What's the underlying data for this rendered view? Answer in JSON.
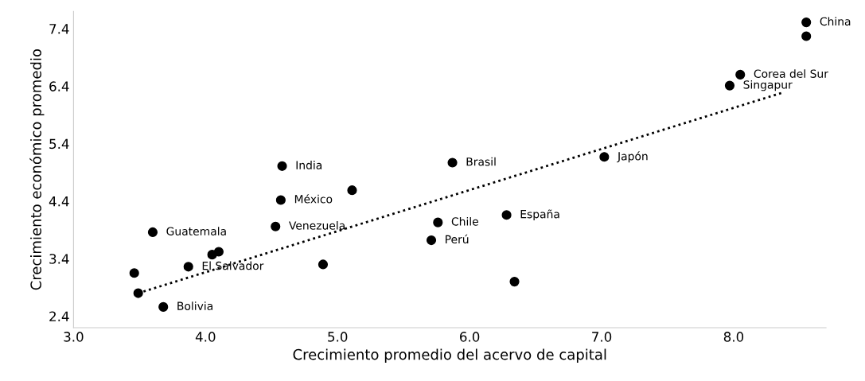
{
  "chart_data": {
    "type": "scatter",
    "xlabel": "Crecimiento promedio del acervo de capital",
    "ylabel": "Crecimiento económico promedio",
    "xlim": [
      3.0,
      8.7
    ],
    "xticks": [
      {
        "value": 3.0,
        "label": "3.0"
      },
      {
        "value": 4.0,
        "label": "4.0"
      },
      {
        "value": 5.0,
        "label": "5.0"
      },
      {
        "value": 6.0,
        "label": "6.0"
      },
      {
        "value": 7.0,
        "label": "7.0"
      },
      {
        "value": 8.0,
        "label": "8.0"
      }
    ],
    "ylim": [
      2.2,
      7.7
    ],
    "yticks": [
      2.4,
      3.4,
      4.4,
      5.4,
      6.4,
      7.4
    ],
    "grid": false,
    "marker": "circle",
    "series": [
      {
        "color": "#000000",
        "x": [
          8.55,
          8.05,
          7.97,
          7.02,
          5.87,
          4.58,
          4.57,
          6.28,
          5.76,
          4.53,
          3.6,
          4.05,
          3.87,
          3.68
        ],
        "values": [
          7.51,
          6.6,
          6.41,
          5.17,
          5.07,
          5.01,
          4.42,
          4.16,
          4.03,
          3.96,
          3.86,
          3.47,
          3.26,
          2.56
        ]
      },
      {
        "color": "#000000",
        "x": [
          8.55,
          5.11,
          5.71,
          4.1,
          4.89,
          3.46,
          3.49,
          6.34
        ],
        "values": [
          7.27,
          4.59,
          3.72,
          3.52,
          3.3,
          3.15,
          2.8,
          3.0
        ]
      },
      {
        "type": "line",
        "color": "#000000",
        "line_style": "dotted",
        "marker": "none",
        "x": [
          3.49,
          8.36
        ],
        "values": [
          2.8,
          6.28
        ]
      }
    ],
    "annotations": [
      {
        "text": "China",
        "x": 8.55,
        "y": 7.51
      },
      {
        "text": "Corea del Sur",
        "x": 8.05,
        "y": 6.6
      },
      {
        "text": "Singapur",
        "x": 7.97,
        "y": 6.41
      },
      {
        "text": "Japón",
        "x": 7.02,
        "y": 5.17
      },
      {
        "text": "Brasil",
        "x": 5.87,
        "y": 5.07
      },
      {
        "text": "India",
        "x": 4.58,
        "y": 5.01
      },
      {
        "text": "México",
        "x": 4.57,
        "y": 4.42
      },
      {
        "text": "España",
        "x": 6.28,
        "y": 4.16
      },
      {
        "text": "Chile",
        "x": 5.76,
        "y": 4.03
      },
      {
        "text": "Venezuela",
        "x": 4.53,
        "y": 3.96
      },
      {
        "text": "Guatemala",
        "x": 3.6,
        "y": 3.86
      },
      {
        "text": "Perú",
        "x": 5.71,
        "y": 3.72
      },
      {
        "text": "El Salvador",
        "x": 3.87,
        "y": 3.26
      },
      {
        "text": "Bolivia",
        "x": 3.68,
        "y": 2.56
      }
    ]
  }
}
